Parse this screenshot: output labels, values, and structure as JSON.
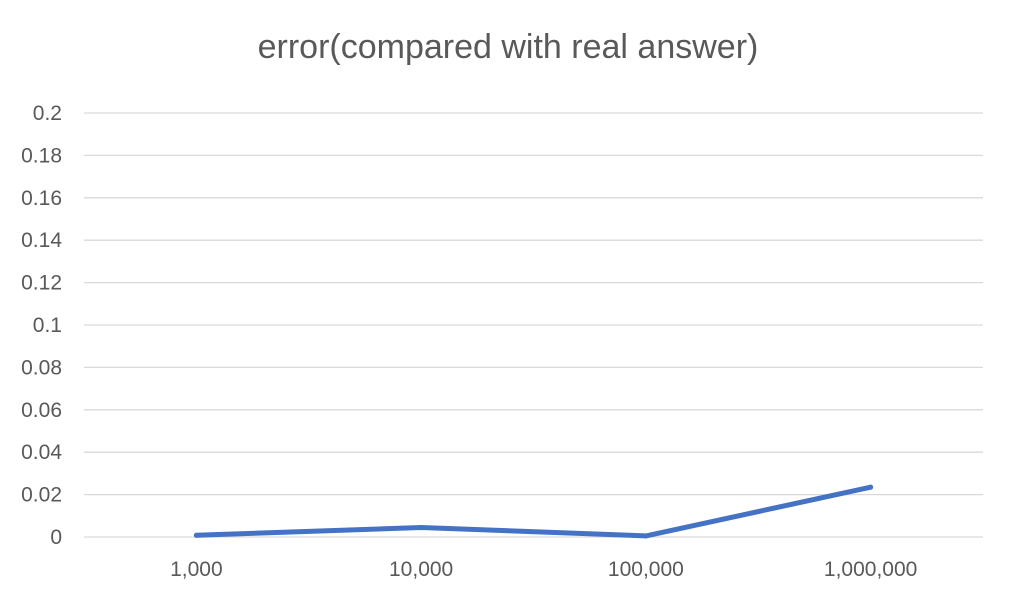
{
  "chart_data": {
    "type": "line",
    "title": "error(compared with real answer)",
    "xlabel": "",
    "ylabel": "",
    "categories": [
      "1,000",
      "10,000",
      "100,000",
      "1,000,000"
    ],
    "y_ticks": [
      "0",
      "0.02",
      "0.04",
      "0.06",
      "0.08",
      "0.1",
      "0.12",
      "0.14",
      "0.16",
      "0.18",
      "0.2"
    ],
    "ylim": [
      0,
      0.2
    ],
    "grid": true,
    "legend": "none",
    "series": [
      {
        "values": [
          0.0008,
          0.0045,
          0.0005,
          0.0235
        ],
        "color": "#4472c4"
      }
    ]
  }
}
